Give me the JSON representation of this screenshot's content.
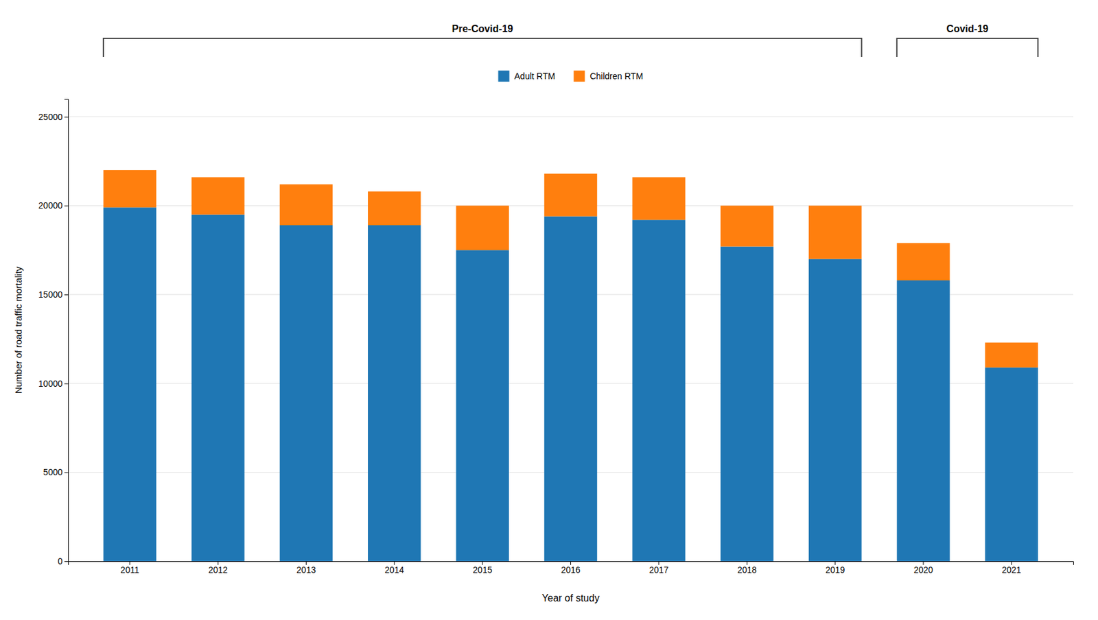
{
  "chart_data": {
    "type": "bar",
    "stacked": true,
    "categories": [
      "2011",
      "2012",
      "2013",
      "2014",
      "2015",
      "2016",
      "2017",
      "2018",
      "2019",
      "2020",
      "2021"
    ],
    "series": [
      {
        "name": "Adult RTM",
        "values": [
          19900,
          19500,
          18900,
          18900,
          17500,
          19400,
          19200,
          17700,
          17000,
          15800,
          10900
        ]
      },
      {
        "name": "Children RTM",
        "values": [
          2100,
          2100,
          2300,
          1900,
          2500,
          2400,
          2400,
          2300,
          3000,
          2100,
          1400
        ]
      }
    ],
    "xlabel": "Year of study",
    "ylabel": "Number of road traffic mortality",
    "ylim": [
      0,
      26000
    ],
    "yticks": [
      0,
      5000,
      10000,
      15000,
      20000,
      25000
    ],
    "grid": true,
    "legend": "top",
    "annotations": [
      {
        "text": "Pre-Covid-19",
        "from": "2011",
        "to": "2019"
      },
      {
        "text": "Covid-19",
        "from": "2020",
        "to": "2021"
      }
    ]
  }
}
